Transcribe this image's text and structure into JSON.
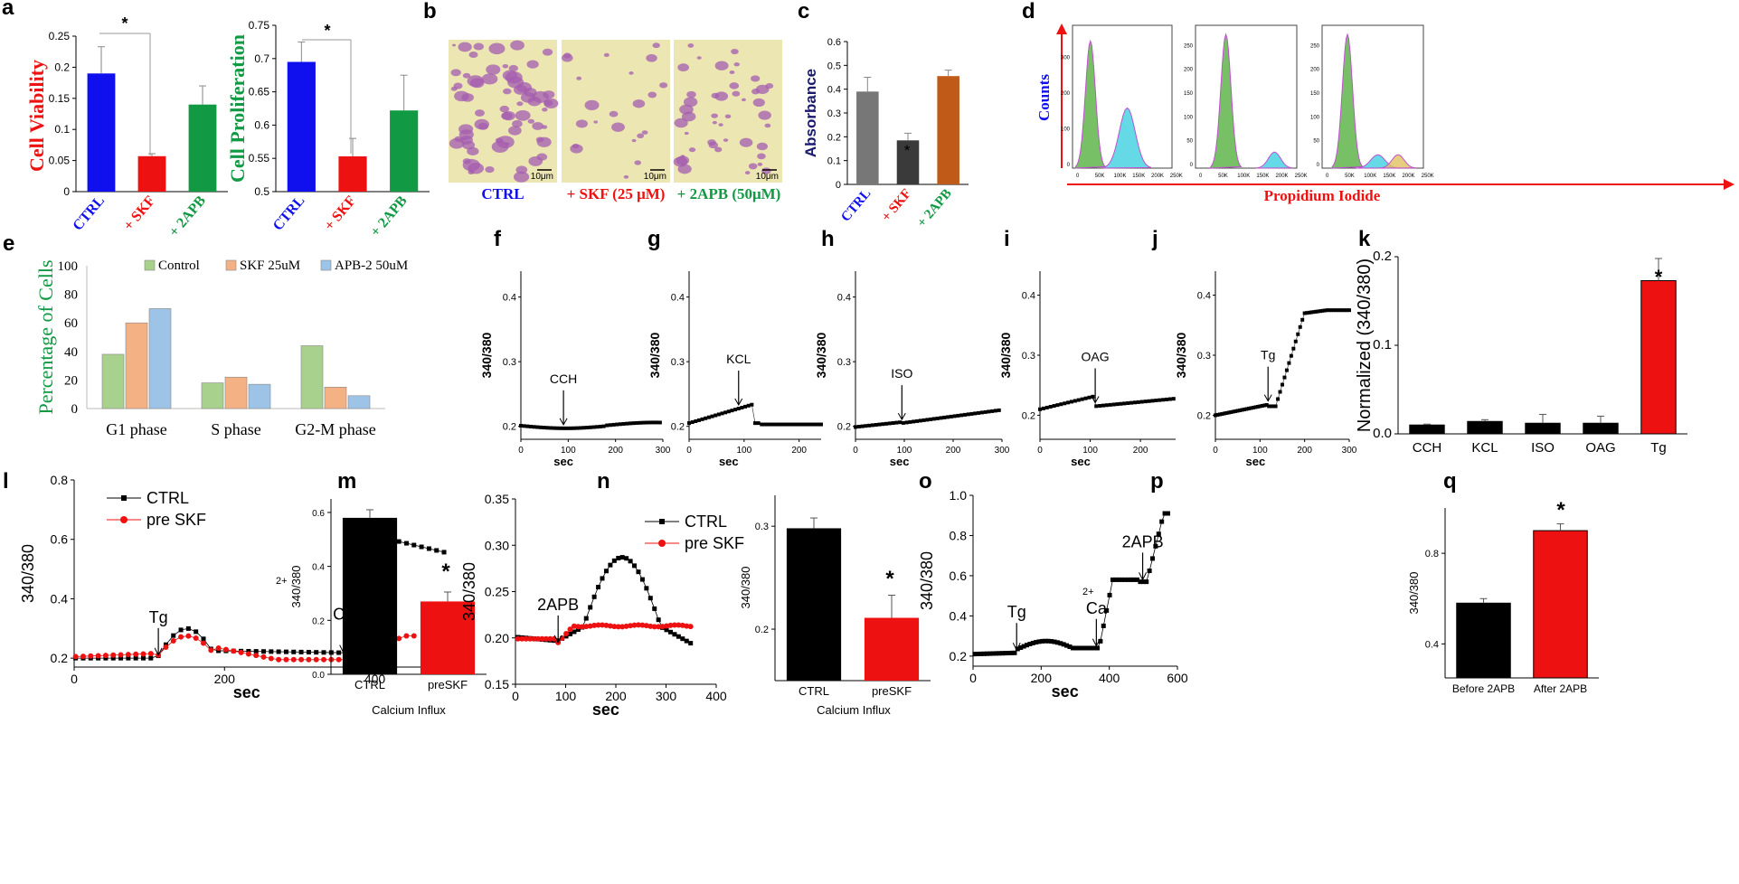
{
  "panel_letters": [
    "a",
    "b",
    "c",
    "d",
    "e",
    "f",
    "g",
    "h",
    "i",
    "j",
    "k",
    "l",
    "m",
    "n",
    "o",
    "p",
    "q"
  ],
  "colors": {
    "blue": "#1010ee",
    "red": "#ee1111",
    "green": "#119944",
    "black": "#000000",
    "orange": "#c05a18",
    "gray": "#777777",
    "darkgray": "#3a3a3a",
    "navy": "#1a1a6e",
    "ctrl_green": "#a9d18e",
    "skf_orange": "#f4b183",
    "apb_blue": "#9dc3e6"
  },
  "panel_b": {
    "labels": [
      "CTRL",
      "+ SKF (25 μM)",
      "+ 2APB (50μM)"
    ],
    "scale": "10μm"
  },
  "panel_d": {
    "ylabel": "Counts",
    "xlabel": "Propidium Iodide",
    "xticks": [
      "0",
      "50K",
      "100K",
      "150K",
      "200K",
      "250K"
    ],
    "yticks": [
      [
        "0",
        "100",
        "200",
        "300"
      ],
      [
        "0",
        "50",
        "100",
        "150",
        "200",
        "250"
      ],
      [
        "0",
        "50",
        "100",
        "150",
        "200",
        "250"
      ]
    ]
  },
  "chart_data": [
    {
      "panel": "a",
      "type": "bar",
      "categories": [
        "CTRL",
        "+ SKF",
        "+ 2APB"
      ],
      "values": [
        0.19,
        0.057,
        0.14
      ],
      "errors": [
        0.043,
        0.004,
        0.03
      ],
      "ylabel": "Cell Viability",
      "ylim": [
        0,
        0.25
      ],
      "yticks": [
        "0",
        "0.05",
        "0.1",
        "0.15",
        "0.2",
        "0.25"
      ],
      "annotations": [
        "*"
      ]
    },
    {
      "panel": "a2",
      "type": "bar",
      "categories": [
        "CTRL",
        "+ SKF",
        "+ 2APB"
      ],
      "values": [
        0.695,
        0.553,
        0.622
      ],
      "errors": [
        0.03,
        0.027,
        0.053
      ],
      "ylabel": "Cell Proliferation",
      "ylim": [
        0.5,
        0.75
      ],
      "yticks": [
        "0.5",
        "0.55",
        "0.6",
        "0.65",
        "0.7",
        "0.75"
      ],
      "annotations": [
        "*"
      ]
    },
    {
      "panel": "c",
      "type": "bar",
      "categories": [
        "CTRL",
        "+ SKF",
        "+ 2APB"
      ],
      "values": [
        0.39,
        0.185,
        0.455
      ],
      "errors": [
        0.06,
        0.03,
        0.025
      ],
      "ylabel": "Absorbance",
      "ylim": [
        0,
        0.6
      ],
      "yticks": [
        "0",
        "0.1",
        "0.2",
        "0.3",
        "0.4",
        "0.5",
        "0.6"
      ],
      "annotations": [
        "*"
      ]
    },
    {
      "panel": "e",
      "type": "bar",
      "categories": [
        "G1 phase",
        "S phase",
        "G2-M phase"
      ],
      "series": [
        {
          "name": "Control",
          "values": [
            38,
            18,
            44
          ]
        },
        {
          "name": "SKF 25uM",
          "values": [
            60,
            22,
            15
          ]
        },
        {
          "name": "APB-2 50uM",
          "values": [
            70,
            17,
            9
          ]
        }
      ],
      "ylabel": "Percentage of Cells",
      "ylim": [
        0,
        100
      ],
      "yticks": [
        "0",
        "20",
        "40",
        "60",
        "80",
        "100"
      ]
    },
    {
      "panel": "f",
      "type": "line",
      "ylabel": "340/380",
      "xlabel": "sec",
      "annotation": "CCH",
      "xticks": [
        "0",
        "100",
        "200",
        "300"
      ],
      "yticks": [
        "0.2",
        "0.3",
        "0.4"
      ],
      "xlim": [
        0,
        300
      ],
      "ylim": [
        0.18,
        0.44
      ]
    },
    {
      "panel": "g",
      "type": "line",
      "ylabel": "340/380",
      "xlabel": "sec",
      "annotation": "KCL",
      "xticks": [
        "0",
        "100",
        "200"
      ],
      "yticks": [
        "0.2",
        "0.3",
        "0.4"
      ],
      "xlim": [
        0,
        240
      ],
      "ylim": [
        0.18,
        0.44
      ]
    },
    {
      "panel": "h",
      "type": "line",
      "ylabel": "340/380",
      "xlabel": "sec",
      "annotation": "ISO",
      "xticks": [
        "0",
        "100",
        "200",
        "300"
      ],
      "yticks": [
        "0.2",
        "0.3",
        "0.4"
      ],
      "xlim": [
        0,
        300
      ],
      "ylim": [
        0.18,
        0.44
      ]
    },
    {
      "panel": "i",
      "type": "line",
      "ylabel": "340/380",
      "xlabel": "sec",
      "annotation": "OAG",
      "xticks": [
        "0",
        "100",
        "200"
      ],
      "yticks": [
        "0.2",
        "0.3",
        "0.4"
      ],
      "xlim": [
        0,
        270
      ],
      "ylim": [
        0.16,
        0.44
      ]
    },
    {
      "panel": "j",
      "type": "line",
      "ylabel": "340/380",
      "xlabel": "sec",
      "annotation": "Tg",
      "xticks": [
        "0",
        "100",
        "200",
        "300"
      ],
      "yticks": [
        "0.2",
        "0.3",
        "0.4"
      ],
      "xlim": [
        0,
        300
      ],
      "ylim": [
        0.16,
        0.44
      ]
    },
    {
      "panel": "k",
      "type": "bar",
      "categories": [
        "CCH",
        "KCL",
        "ISO",
        "OAG",
        "Tg"
      ],
      "values": [
        0.01,
        0.014,
        0.012,
        0.012,
        0.173
      ],
      "errors": [
        0.001,
        0.002,
        0.01,
        0.008,
        0.025
      ],
      "ylabel": "Normalized (340/380)",
      "ylim": [
        0,
        0.2
      ],
      "yticks": [
        "0.0",
        "0.1",
        "0.2"
      ],
      "annotations": [
        "*"
      ]
    },
    {
      "panel": "l",
      "type": "line",
      "series": [
        {
          "name": "CTRL"
        },
        {
          "name": "pre SKF"
        }
      ],
      "ylabel": "340/380",
      "xlabel": "sec",
      "annotations": [
        "Tg",
        "Ca2+"
      ],
      "xticks": [
        "0",
        "200",
        "400"
      ],
      "yticks": [
        "0.2",
        "0.4",
        "0.6",
        "0.8"
      ],
      "xlim": [
        0,
        510
      ],
      "ylim": [
        0.17,
        0.8
      ]
    },
    {
      "panel": "m",
      "type": "bar",
      "categories": [
        "CTRL",
        "preSKF"
      ],
      "values": [
        0.58,
        0.27
      ],
      "errors": [
        0.03,
        0.035
      ],
      "ylabel": "340/380",
      "xlabel": "Calcium Influx",
      "ylim": [
        0,
        0.65
      ],
      "yticks": [
        "0.0",
        "0.2",
        "0.4",
        "0.6"
      ],
      "annotations": [
        "*"
      ]
    },
    {
      "panel": "n",
      "type": "line",
      "series": [
        {
          "name": "CTRL"
        },
        {
          "name": "pre SKF"
        }
      ],
      "ylabel": "340/380",
      "xlabel": "sec",
      "annotations": [
        "2APB"
      ],
      "xticks": [
        "0",
        "100",
        "200",
        "300",
        "400"
      ],
      "yticks": [
        "0.15",
        "0.20",
        "0.25",
        "0.30",
        "0.35"
      ],
      "xlim": [
        0,
        400
      ],
      "ylim": [
        0.15,
        0.35
      ]
    },
    {
      "panel": "o",
      "type": "bar",
      "categories": [
        "CTRL",
        "preSKF"
      ],
      "values": [
        0.298,
        0.211
      ],
      "errors": [
        0.01,
        0.022
      ],
      "ylabel": "340/380",
      "xlabel": "Calcium Influx",
      "ylim": [
        0.15,
        0.33
      ],
      "yticks": [
        "0.2",
        "0.3"
      ],
      "annotations": [
        "*"
      ]
    },
    {
      "panel": "p",
      "type": "line",
      "ylabel": "340/380",
      "xlabel": "sec",
      "annotations": [
        "Tg",
        "Ca2+",
        "2APB"
      ],
      "xticks": [
        "0",
        "200",
        "400",
        "600"
      ],
      "yticks": [
        "0.2",
        "0.4",
        "0.6",
        "0.8",
        "1.0"
      ],
      "xlim": [
        0,
        600
      ],
      "ylim": [
        0.15,
        1.0
      ]
    },
    {
      "panel": "q",
      "type": "bar",
      "categories": [
        "Before 2APB",
        "After 2APB"
      ],
      "values": [
        0.58,
        0.9
      ],
      "errors": [
        0.02,
        0.03
      ],
      "ylabel": "340/380",
      "ylim": [
        0.25,
        1.0
      ],
      "yticks": [
        "0.4",
        "0.8"
      ],
      "annotations": [
        "*"
      ]
    }
  ]
}
